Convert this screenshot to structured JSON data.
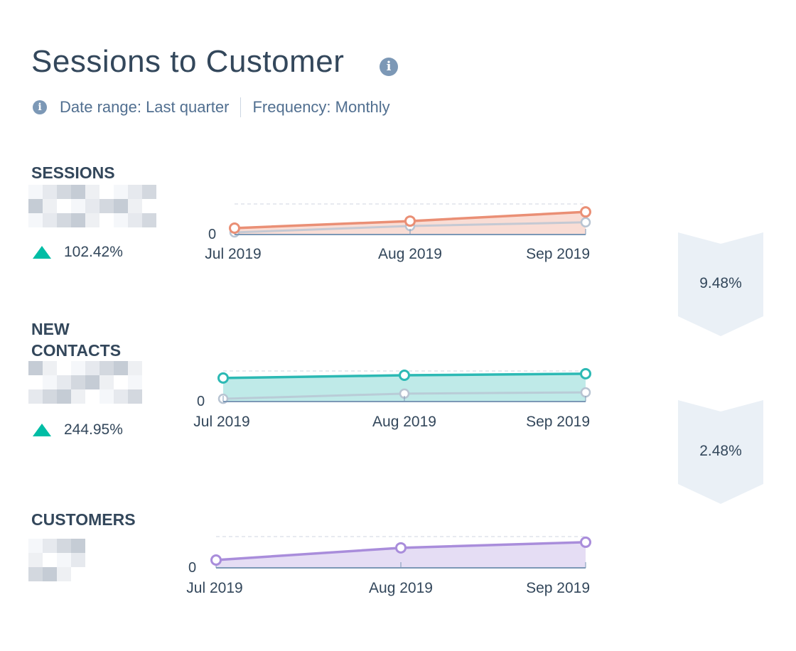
{
  "title": "Sessions to Customer",
  "meta": {
    "date_range": "Date range: Last quarter",
    "frequency": "Frequency: Monthly"
  },
  "sections": [
    {
      "label": "SESSIONS",
      "change": "102.42%",
      "change_direction": "up"
    },
    {
      "label": "NEW CONTACTS",
      "change": "244.95%",
      "change_direction": "up"
    },
    {
      "label": "CUSTOMERS"
    }
  ],
  "conversions": [
    "9.48%",
    "2.48%"
  ],
  "colors": {
    "sessions": "#ea8f75",
    "new_contacts": "#2cb9b4",
    "customers": "#a98ddb",
    "comparison": "#b8c4d2",
    "up": "#00bda5",
    "funnel": "#eaf0f6"
  },
  "chart_data": [
    {
      "type": "area",
      "categories": [
        "Jul 2019",
        "Aug 2019",
        "Sep 2019"
      ],
      "y_tick_labels": [
        "0"
      ],
      "grid": true,
      "note_scale": "values relative to top gridline (label obscured)",
      "series": [
        {
          "values": [
            0.21,
            0.44,
            0.74
          ]
        },
        {
          "values": [
            0.07,
            0.28,
            0.4
          ],
          "comparison": true
        }
      ]
    },
    {
      "type": "area",
      "categories": [
        "Jul 2019",
        "Aug 2019",
        "Sep 2019"
      ],
      "y_tick_labels": [
        "0"
      ],
      "grid": true,
      "series": [
        {
          "values": [
            0.77,
            0.86,
            0.91
          ]
        },
        {
          "values": [
            0.09,
            0.26,
            0.3
          ],
          "comparison": true
        }
      ]
    },
    {
      "type": "area",
      "categories": [
        "Jul 2019",
        "Aug 2019",
        "Sep 2019"
      ],
      "y_tick_labels": [
        "0"
      ],
      "grid": true,
      "series": [
        {
          "values": [
            0.25,
            0.64,
            0.82
          ]
        }
      ]
    }
  ]
}
